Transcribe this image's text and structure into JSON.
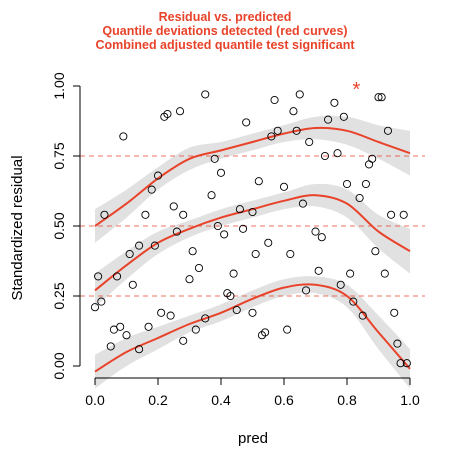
{
  "colors": {
    "accent": "#e8432a",
    "band": "#dcdcdc",
    "points": "#000000"
  },
  "chart_data": {
    "type": "scatter",
    "title_lines": [
      "Residual vs. predicted",
      "Quantile deviations detected (red curves)",
      "Combined adjusted quantile test significant"
    ],
    "xlabel": "pred",
    "ylabel": "Standardized residual",
    "xlim": [
      0,
      1
    ],
    "ylim": [
      0,
      1
    ],
    "x_ticks": [
      0.0,
      0.2,
      0.4,
      0.6,
      0.8,
      1.0
    ],
    "x_tick_labels": [
      "0.0",
      "0.2",
      "0.4",
      "0.6",
      "0.8",
      "1.0"
    ],
    "y_ticks": [
      0.0,
      0.25,
      0.5,
      0.75,
      1.0
    ],
    "y_tick_labels": [
      "0.00",
      "0.25",
      "0.50",
      "0.75",
      "1.00"
    ],
    "reference_lines": [
      0.25,
      0.5,
      0.75
    ],
    "outlier_marker": {
      "x": 0.83,
      "y": 1.0,
      "symbol": "*"
    },
    "points": [
      [
        0.0,
        0.21
      ],
      [
        0.01,
        0.32
      ],
      [
        0.02,
        0.23
      ],
      [
        0.03,
        0.54
      ],
      [
        0.05,
        0.07
      ],
      [
        0.06,
        0.13
      ],
      [
        0.07,
        0.32
      ],
      [
        0.08,
        0.14
      ],
      [
        0.09,
        0.82
      ],
      [
        0.1,
        0.11
      ],
      [
        0.11,
        0.4
      ],
      [
        0.12,
        0.29
      ],
      [
        0.14,
        0.06
      ],
      [
        0.14,
        0.43
      ],
      [
        0.16,
        0.54
      ],
      [
        0.17,
        0.14
      ],
      [
        0.18,
        0.63
      ],
      [
        0.19,
        0.43
      ],
      [
        0.2,
        0.68
      ],
      [
        0.21,
        0.19
      ],
      [
        0.22,
        0.89
      ],
      [
        0.23,
        0.9
      ],
      [
        0.24,
        0.18
      ],
      [
        0.25,
        0.57
      ],
      [
        0.26,
        0.48
      ],
      [
        0.27,
        0.91
      ],
      [
        0.28,
        0.54
      ],
      [
        0.28,
        0.09
      ],
      [
        0.3,
        0.31
      ],
      [
        0.31,
        0.41
      ],
      [
        0.32,
        0.13
      ],
      [
        0.33,
        0.35
      ],
      [
        0.35,
        0.97
      ],
      [
        0.35,
        0.17
      ],
      [
        0.37,
        0.61
      ],
      [
        0.38,
        0.74
      ],
      [
        0.39,
        0.5
      ],
      [
        0.4,
        0.69
      ],
      [
        0.41,
        0.47
      ],
      [
        0.42,
        0.26
      ],
      [
        0.43,
        0.25
      ],
      [
        0.44,
        0.33
      ],
      [
        0.45,
        0.2
      ],
      [
        0.46,
        0.56
      ],
      [
        0.47,
        0.49
      ],
      [
        0.48,
        0.87
      ],
      [
        0.5,
        0.19
      ],
      [
        0.5,
        0.55
      ],
      [
        0.51,
        0.4
      ],
      [
        0.52,
        0.66
      ],
      [
        0.53,
        0.11
      ],
      [
        0.54,
        0.12
      ],
      [
        0.55,
        0.44
      ],
      [
        0.56,
        0.82
      ],
      [
        0.57,
        0.95
      ],
      [
        0.58,
        0.84
      ],
      [
        0.6,
        0.64
      ],
      [
        0.61,
        0.13
      ],
      [
        0.62,
        0.4
      ],
      [
        0.63,
        0.91
      ],
      [
        0.64,
        0.84
      ],
      [
        0.65,
        0.97
      ],
      [
        0.66,
        0.58
      ],
      [
        0.67,
        0.27
      ],
      [
        0.68,
        0.8
      ],
      [
        0.7,
        0.48
      ],
      [
        0.71,
        0.34
      ],
      [
        0.72,
        0.46
      ],
      [
        0.73,
        0.75
      ],
      [
        0.74,
        0.88
      ],
      [
        0.76,
        0.94
      ],
      [
        0.77,
        0.76
      ],
      [
        0.78,
        0.29
      ],
      [
        0.79,
        0.89
      ],
      [
        0.8,
        0.65
      ],
      [
        0.81,
        0.33
      ],
      [
        0.82,
        0.23
      ],
      [
        0.84,
        0.6
      ],
      [
        0.85,
        0.18
      ],
      [
        0.86,
        0.65
      ],
      [
        0.87,
        0.72
      ],
      [
        0.88,
        0.74
      ],
      [
        0.89,
        0.41
      ],
      [
        0.9,
        0.96
      ],
      [
        0.91,
        0.96
      ],
      [
        0.92,
        0.33
      ],
      [
        0.93,
        0.84
      ],
      [
        0.94,
        0.54
      ],
      [
        0.95,
        0.19
      ],
      [
        0.96,
        0.08
      ],
      [
        0.97,
        0.01
      ],
      [
        0.98,
        0.54
      ],
      [
        0.99,
        0.01
      ]
    ],
    "series": [
      {
        "quantile": 0.25,
        "x": [
          0.0,
          0.1,
          0.2,
          0.3,
          0.4,
          0.5,
          0.6,
          0.7,
          0.8,
          0.9,
          1.0
        ],
        "y": [
          -0.02,
          0.05,
          0.1,
          0.15,
          0.19,
          0.24,
          0.28,
          0.29,
          0.25,
          0.12,
          -0.01
        ],
        "band_lower": [
          -0.08,
          0.0,
          0.06,
          0.12,
          0.16,
          0.21,
          0.25,
          0.26,
          0.21,
          0.06,
          -0.08
        ],
        "band_upper": [
          0.04,
          0.1,
          0.14,
          0.18,
          0.22,
          0.27,
          0.31,
          0.32,
          0.29,
          0.18,
          0.06
        ]
      },
      {
        "quantile": 0.5,
        "x": [
          0.0,
          0.1,
          0.2,
          0.3,
          0.4,
          0.5,
          0.6,
          0.7,
          0.8,
          0.9,
          1.0
        ],
        "y": [
          0.27,
          0.36,
          0.44,
          0.49,
          0.53,
          0.56,
          0.59,
          0.61,
          0.58,
          0.48,
          0.41
        ],
        "band_lower": [
          0.21,
          0.31,
          0.4,
          0.46,
          0.5,
          0.53,
          0.56,
          0.57,
          0.53,
          0.42,
          0.33
        ],
        "band_upper": [
          0.33,
          0.41,
          0.48,
          0.52,
          0.56,
          0.59,
          0.62,
          0.65,
          0.63,
          0.54,
          0.49
        ]
      },
      {
        "quantile": 0.75,
        "x": [
          0.0,
          0.1,
          0.2,
          0.3,
          0.4,
          0.5,
          0.6,
          0.7,
          0.8,
          0.9,
          1.0
        ],
        "y": [
          0.5,
          0.58,
          0.67,
          0.74,
          0.77,
          0.8,
          0.83,
          0.85,
          0.84,
          0.8,
          0.76
        ],
        "band_lower": [
          0.44,
          0.53,
          0.63,
          0.7,
          0.74,
          0.77,
          0.8,
          0.81,
          0.79,
          0.74,
          0.68
        ],
        "band_upper": [
          0.56,
          0.63,
          0.71,
          0.78,
          0.8,
          0.83,
          0.86,
          0.89,
          0.89,
          0.86,
          0.84
        ]
      }
    ]
  }
}
